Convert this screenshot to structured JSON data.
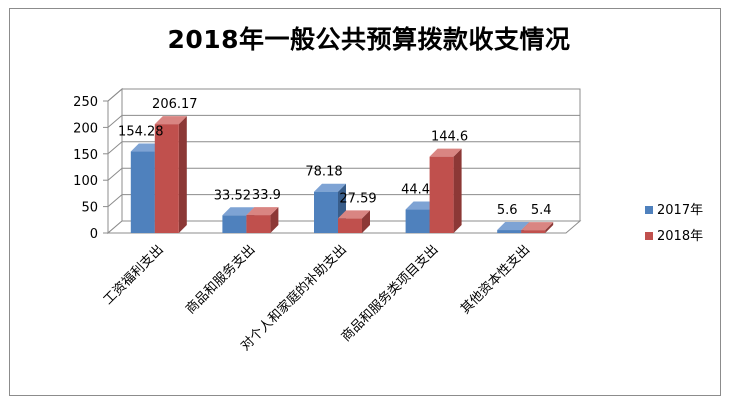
{
  "chart_data": {
    "type": "bar",
    "title": "2018年一般公共预算拨款收支情况",
    "categories": [
      "工资福利支出",
      "商品和服务支出",
      "对个人和家庭的补助支出",
      "商品和服务类项目支出",
      "其他资本性支出"
    ],
    "series": [
      {
        "name": "2017年",
        "values": [
          154.28,
          33.52,
          78.18,
          44.4,
          5.6
        ],
        "labels": [
          "154.28",
          "33.52",
          "78.18",
          "44.4",
          "5.6"
        ],
        "color": "#4f81bd",
        "dark": "#385d8a",
        "top": "#7ea3d4"
      },
      {
        "name": "2018年",
        "values": [
          206.17,
          33.9,
          27.59,
          144.6,
          5.4
        ],
        "labels": [
          "206.17",
          "33.9",
          "27.59",
          "144.6",
          "5.4"
        ],
        "color": "#c0504d",
        "dark": "#8c3836",
        "top": "#d98582"
      }
    ],
    "yticks": [
      "0",
      "50",
      "100",
      "150",
      "200",
      "250"
    ],
    "ylim": [
      0,
      250
    ],
    "legend_position": "right",
    "style": "3d-clustered-column"
  }
}
